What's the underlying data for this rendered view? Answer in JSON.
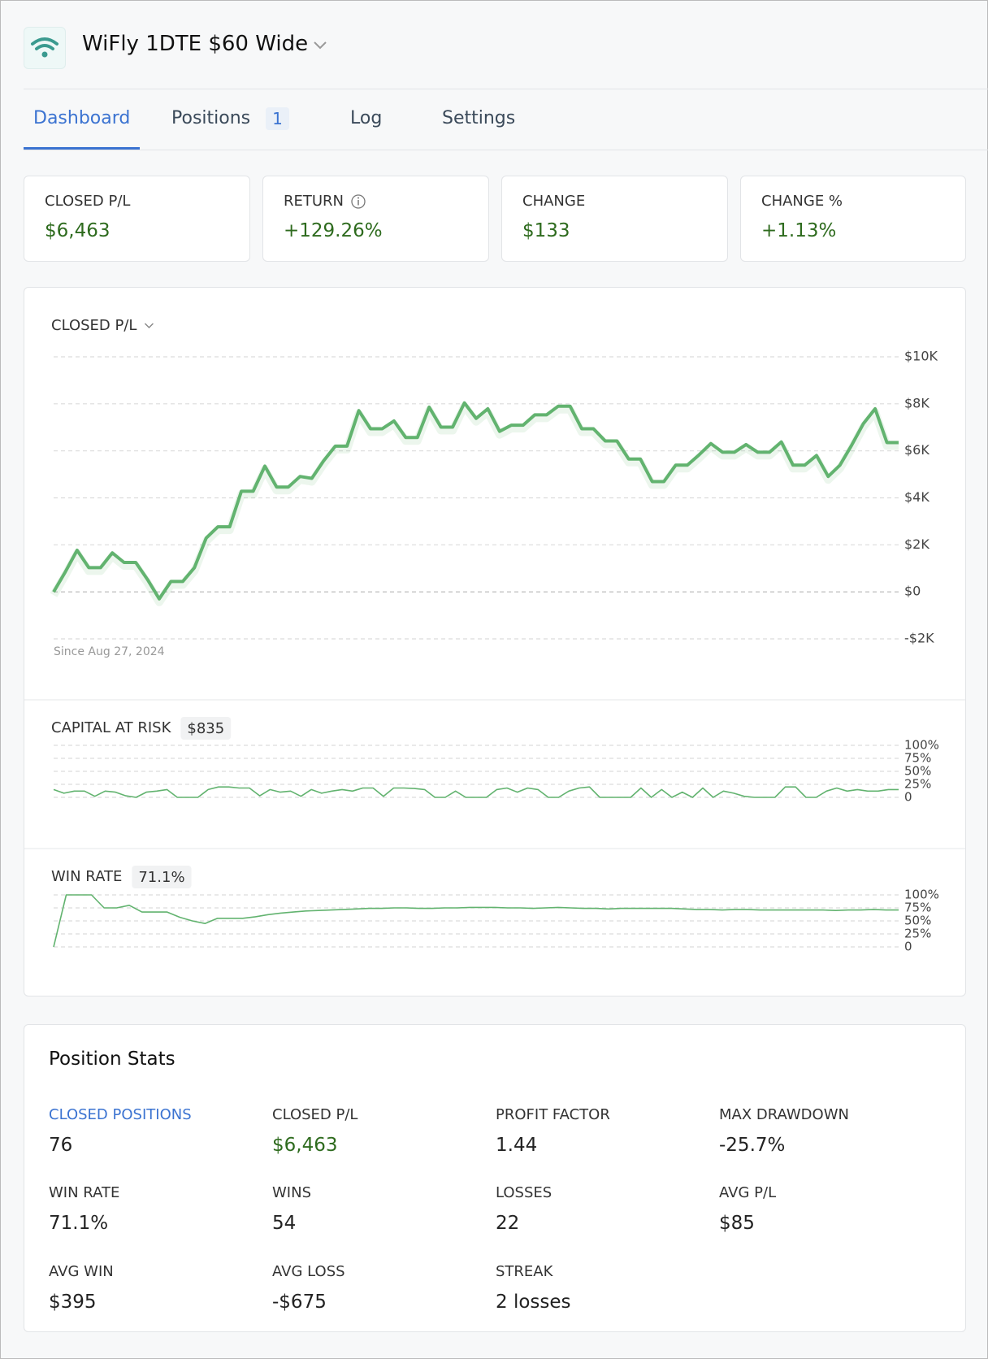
{
  "header": {
    "title": "WiFly 1DTE $60 Wide"
  },
  "tabs": [
    {
      "label": "Dashboard"
    },
    {
      "label": "Positions",
      "badge": "1"
    },
    {
      "label": "Log"
    },
    {
      "label": "Settings"
    }
  ],
  "stat_cards": [
    {
      "label": "CLOSED P/L",
      "value": "$6,463"
    },
    {
      "label": "RETURN",
      "value": "+129.26%"
    },
    {
      "label": "CHANGE",
      "value": "$133"
    },
    {
      "label": "CHANGE %",
      "value": "+1.13%"
    }
  ],
  "chart_data": [
    {
      "type": "line",
      "title": "CLOSED P/L",
      "note": "Since Aug 27, 2024",
      "color": "#62b36f",
      "values": [
        0,
        850,
        1770,
        1030,
        1030,
        1660,
        1250,
        1250,
        520,
        -300,
        440,
        440,
        1030,
        2290,
        2770,
        2770,
        4280,
        4280,
        5350,
        4460,
        4460,
        4910,
        4830,
        5570,
        6200,
        6200,
        7710,
        6940,
        6940,
        7270,
        6570,
        6570,
        7860,
        7010,
        7010,
        8040,
        7380,
        7790,
        6830,
        7090,
        7090,
        7530,
        7530,
        7900,
        7900,
        6940,
        6940,
        6420,
        6420,
        5650,
        5650,
        4690,
        4690,
        5390,
        5390,
        5830,
        6310,
        5940,
        5940,
        6270,
        5940,
        5940,
        6380,
        5390,
        5390,
        5800,
        4910,
        5390,
        6240,
        7160,
        7790,
        6350,
        6350
      ],
      "ylim": [
        -2000,
        10000
      ],
      "yticks": [
        {
          "value": -2000,
          "label": "-$2K"
        },
        {
          "value": 0,
          "label": "$0"
        },
        {
          "value": 2000,
          "label": "$2K"
        },
        {
          "value": 4000,
          "label": "$4K"
        },
        {
          "value": 6000,
          "label": "$6K"
        },
        {
          "value": 8000,
          "label": "$8K"
        },
        {
          "value": 10000,
          "label": "$10K"
        }
      ],
      "grid": true
    },
    {
      "type": "line",
      "title": "CAPITAL AT RISK",
      "badge": "$835",
      "color": "#62b36f",
      "values": [
        15,
        8,
        12,
        12,
        2,
        12,
        10,
        3,
        0,
        10,
        12,
        15,
        0,
        0,
        0,
        15,
        20,
        20,
        18,
        18,
        3,
        15,
        10,
        12,
        2,
        15,
        8,
        12,
        15,
        12,
        18,
        18,
        2,
        18,
        18,
        17,
        15,
        0,
        0,
        12,
        0,
        0,
        0,
        15,
        18,
        10,
        18,
        15,
        0,
        0,
        12,
        18,
        20,
        0,
        0,
        0,
        0,
        18,
        0,
        15,
        0,
        10,
        0,
        18,
        0,
        12,
        8,
        2,
        0,
        0,
        0,
        20,
        20,
        0,
        0,
        12,
        18,
        12,
        15,
        12,
        12,
        15,
        15
      ],
      "ylim": [
        0,
        100
      ],
      "yticks": [
        0,
        {
          "value": 25,
          "label": "25%"
        },
        {
          "value": 50,
          "label": "50%"
        },
        {
          "value": 75,
          "label": "75%"
        },
        {
          "value": 100,
          "label": "100%"
        }
      ],
      "grid": true
    },
    {
      "type": "line",
      "title": "WIN RATE",
      "badge": "71.1%",
      "color": "#62b36f",
      "values": [
        0,
        100,
        100,
        100,
        75,
        75,
        80,
        67,
        67,
        67,
        57,
        50,
        45,
        55,
        55,
        55,
        58,
        62,
        65,
        67,
        69,
        70,
        71,
        72,
        73,
        74,
        74,
        75,
        75,
        74,
        74,
        75,
        75,
        76,
        76,
        76,
        75,
        75,
        74,
        75,
        76,
        75,
        74,
        74,
        73,
        74,
        74,
        74,
        74,
        74,
        73,
        72,
        72,
        71,
        72,
        72,
        71,
        71,
        71,
        71,
        71,
        71,
        70,
        71,
        71,
        72,
        71,
        71
      ],
      "ylim": [
        0,
        100
      ],
      "yticks": [
        0,
        {
          "value": 25,
          "label": "25%"
        },
        {
          "value": 50,
          "label": "50%"
        },
        {
          "value": 75,
          "label": "75%"
        },
        {
          "value": 100,
          "label": "100%"
        }
      ],
      "grid": true
    }
  ],
  "position_stats": {
    "title": "Position Stats",
    "items": [
      {
        "label": "CLOSED POSITIONS",
        "value": "76"
      },
      {
        "label": "CLOSED P/L",
        "value": "$6,463"
      },
      {
        "label": "PROFIT FACTOR",
        "value": "1.44"
      },
      {
        "label": "MAX DRAWDOWN",
        "value": "-25.7%"
      },
      {
        "label": "WIN RATE",
        "value": "71.1%"
      },
      {
        "label": "WINS",
        "value": "54"
      },
      {
        "label": "LOSSES",
        "value": "22"
      },
      {
        "label": "AVG P/L",
        "value": "$85"
      },
      {
        "label": "AVG WIN",
        "value": "$395"
      },
      {
        "label": "AVG LOSS",
        "value": "-$675"
      },
      {
        "label": "STREAK",
        "value": "2 losses"
      }
    ]
  }
}
